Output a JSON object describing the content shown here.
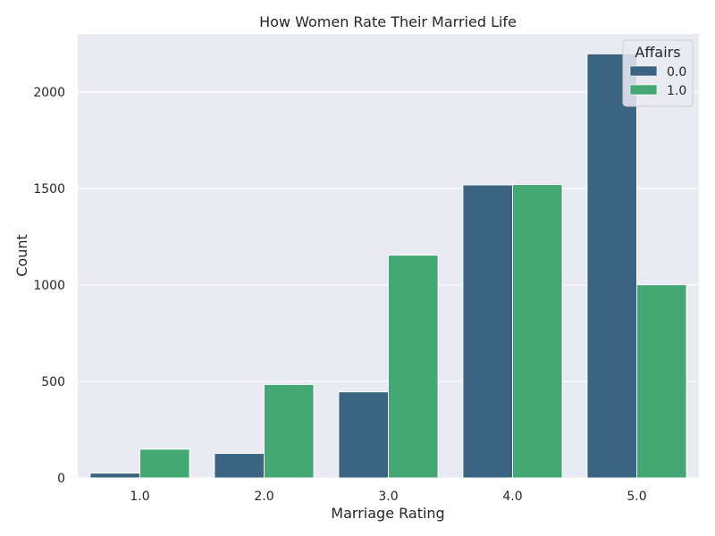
{
  "chart_data": {
    "type": "bar",
    "title": "How Women Rate Their Married Life",
    "xlabel": "Marriage Rating",
    "ylabel": "Count",
    "categories": [
      "1.0",
      "2.0",
      "3.0",
      "4.0",
      "5.0"
    ],
    "series": [
      {
        "name": "0.0",
        "values": [
          25,
          127,
          446,
          1518,
          2197
        ],
        "color": "#3b6482"
      },
      {
        "name": "1.0",
        "values": [
          149,
          484,
          1154,
          1520,
          1001
        ],
        "color": "#44a874"
      }
    ],
    "ylim": [
      0,
      2300
    ],
    "yticks": [
      0,
      500,
      1000,
      1500,
      2000
    ],
    "legend": {
      "title": "Affairs",
      "placement": "top-right"
    },
    "grid": true,
    "background": "#eaeaf2"
  }
}
